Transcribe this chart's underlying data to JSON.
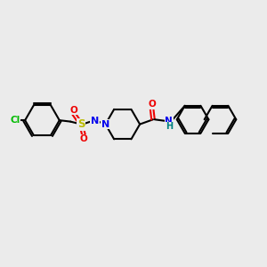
{
  "bg": "#ebebeb",
  "bond_lw": 1.5,
  "atom_colors": {
    "N": "#0000ee",
    "O": "#ee0000",
    "S": "#bbbb00",
    "Cl": "#00bb00",
    "C": "#000000",
    "H": "#008080"
  },
  "figsize": [
    3.0,
    3.0
  ],
  "dpi": 100
}
